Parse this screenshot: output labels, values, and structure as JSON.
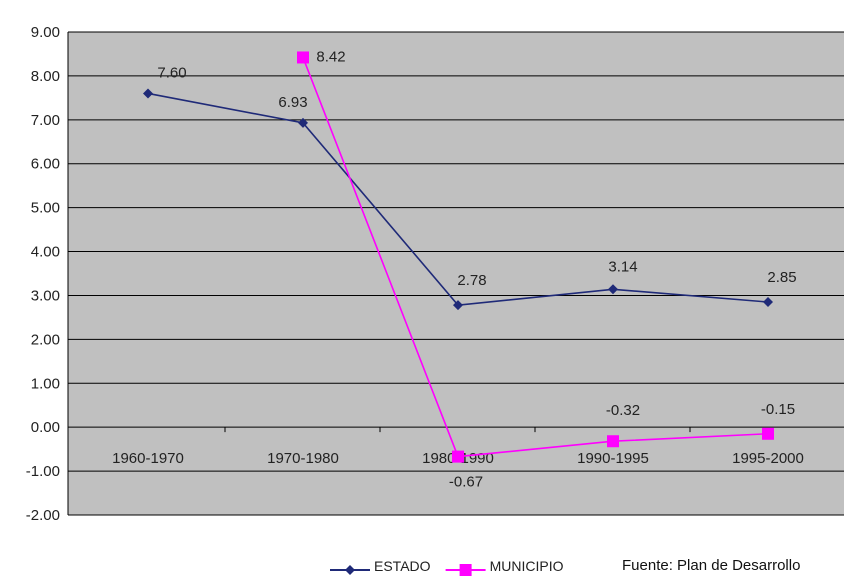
{
  "chart_data": {
    "type": "line",
    "categories": [
      "1960-1970",
      "1970-1980",
      "1980-1990",
      "1990-1995",
      "1995-2000"
    ],
    "series": [
      {
        "name": "ESTADO",
        "values": [
          7.6,
          6.93,
          2.78,
          3.14,
          2.85
        ],
        "labels": [
          "7.60",
          "6.93",
          "2.78",
          "3.14",
          "2.85"
        ],
        "color": "#1f2a78",
        "marker": "diamond"
      },
      {
        "name": "MUNICIPIO",
        "values": [
          null,
          8.42,
          -0.67,
          -0.32,
          -0.15
        ],
        "labels": [
          null,
          "8.42",
          "-0.67",
          "-0.32",
          "-0.15"
        ],
        "color": "#ff00ff",
        "marker": "square"
      }
    ],
    "y_ticks": [
      "9.00",
      "8.00",
      "7.00",
      "6.00",
      "5.00",
      "4.00",
      "3.00",
      "2.00",
      "1.00",
      "0.00",
      "-1.00",
      "-2.00"
    ],
    "ylim": [
      -2,
      9
    ],
    "grid": true,
    "legend": "bottom",
    "plot_background": "#c0c0c0"
  },
  "source_note": "Fuente: Plan de Desarrollo"
}
